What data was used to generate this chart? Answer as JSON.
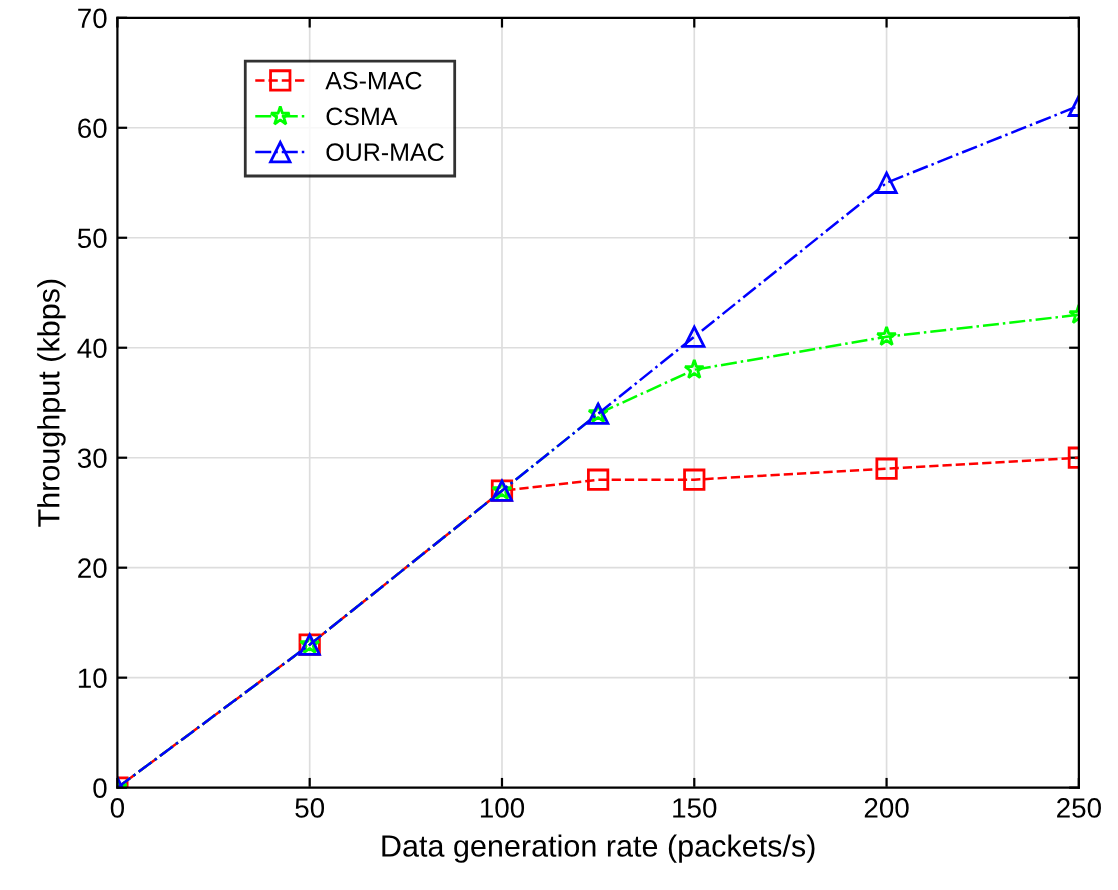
{
  "chart_data": {
    "type": "line",
    "xlabel": "Data generation rate (packets/s)",
    "ylabel": "Throughput (kbps)",
    "x": [
      0,
      50,
      100,
      125,
      150,
      200,
      250
    ],
    "series": [
      {
        "name": "AS-MAC",
        "color": "#ff0000",
        "marker": "square",
        "line_style": "dashed",
        "values": [
          0,
          13,
          27,
          28,
          28,
          29,
          30
        ]
      },
      {
        "name": "CSMA",
        "color": "#00ff00",
        "marker": "star",
        "line_style": "dashdot",
        "values": [
          0,
          13,
          27,
          34,
          38,
          41,
          43
        ]
      },
      {
        "name": "OUR-MAC",
        "color": "#0000ff",
        "marker": "triangle",
        "line_style": "dashdot",
        "values": [
          0,
          13,
          27,
          34,
          41,
          55,
          62
        ]
      }
    ],
    "xlim": [
      0,
      250
    ],
    "xticks": [
      0,
      50,
      100,
      150,
      200,
      250
    ],
    "ylim": [
      0,
      70
    ],
    "yticks": [
      0,
      10,
      20,
      30,
      40,
      50,
      60,
      70
    ],
    "grid": true,
    "legend": "top left"
  }
}
